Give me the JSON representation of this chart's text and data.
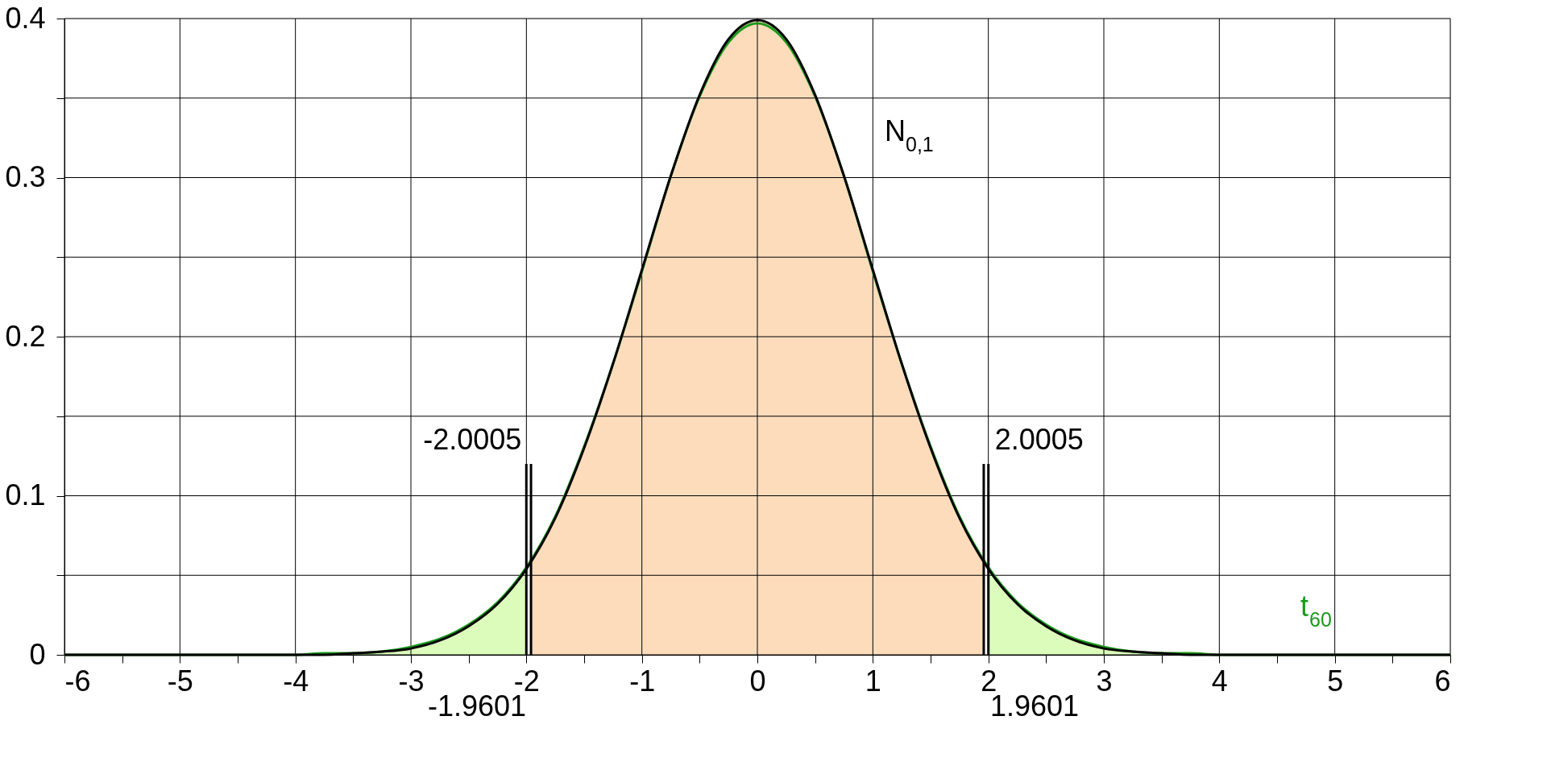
{
  "chart_data": {
    "type": "line",
    "xlim": [
      -6,
      6
    ],
    "ylim": [
      0,
      0.4
    ],
    "xticks": [
      -6,
      {
        "value": -5.5,
        "label": null
      },
      -5,
      {
        "value": -4.5,
        "label": null
      },
      -4,
      {
        "value": -3.5,
        "label": null
      },
      -3,
      {
        "value": -2.5,
        "label": null
      },
      -2,
      {
        "value": -1.5,
        "label": null
      },
      -1,
      {
        "value": -0.5,
        "label": null
      },
      0,
      {
        "value": 0.5,
        "label": null
      },
      1,
      {
        "value": 1.5,
        "label": null
      },
      2,
      {
        "value": 2.5,
        "label": null
      },
      3,
      {
        "value": 3.5,
        "label": null
      },
      4,
      {
        "value": 4.5,
        "label": null
      },
      5,
      {
        "value": 5.5,
        "label": null
      },
      6
    ],
    "yticks": [
      0,
      {
        "value": 0.05,
        "label": null
      },
      0.1,
      {
        "value": 0.15,
        "label": null
      },
      0.2,
      {
        "value": 0.25,
        "label": null
      },
      0.3,
      {
        "value": 0.35,
        "label": null
      },
      0.4
    ],
    "grid": true,
    "series": [
      {
        "type": "area",
        "color": "#fddcbc",
        "x": [
          -1.9601,
          -1.75,
          -1.5,
          -1.25,
          -1,
          -0.75,
          -0.5,
          -0.25,
          0,
          0.25,
          0.5,
          0.75,
          1,
          1.25,
          1.5,
          1.75,
          1.9601
        ],
        "values": [
          0.058,
          0.086,
          0.13,
          0.183,
          0.242,
          0.301,
          0.352,
          0.387,
          0.399,
          0.387,
          0.352,
          0.301,
          0.242,
          0.183,
          0.13,
          0.086,
          0.058
        ]
      },
      {
        "type": "area",
        "color": "#dcfcbc",
        "x": [
          -6,
          -5,
          -4,
          -3.75,
          -3.5,
          -3.25,
          -3,
          -2.75,
          -2.5,
          -2.25,
          -2.0005
        ],
        "values": [
          0,
          0,
          0,
          0.001,
          0.001,
          0.002,
          0.005,
          0.01,
          0.019,
          0.033,
          0.055
        ]
      },
      {
        "type": "area",
        "color": "#dcfcbc",
        "x": [
          2.0005,
          2.25,
          2.5,
          2.75,
          3,
          3.25,
          3.5,
          3.75,
          4,
          5,
          6
        ],
        "values": [
          0.055,
          0.033,
          0.019,
          0.01,
          0.005,
          0.002,
          0.001,
          0.001,
          0,
          0,
          0
        ]
      },
      {
        "name": "t$_{60}$",
        "color": "#1a9a1a",
        "x": [
          -6,
          -5,
          -4,
          -3.75,
          -3.5,
          -3.25,
          -3,
          -2.75,
          -2.5,
          -2.25,
          -2,
          -1.75,
          -1.5,
          -1.25,
          -1,
          -0.75,
          -0.5,
          -0.25,
          0,
          0.25,
          0.5,
          0.75,
          1,
          1.25,
          1.5,
          1.75,
          2,
          2.25,
          2.5,
          2.75,
          3,
          3.25,
          3.5,
          3.75,
          4,
          5,
          6
        ],
        "values": [
          0,
          0,
          0,
          0.001,
          0.001,
          0.002,
          0.005,
          0.01,
          0.019,
          0.033,
          0.055,
          0.087,
          0.131,
          0.183,
          0.241,
          0.301,
          0.351,
          0.385,
          0.397,
          0.385,
          0.351,
          0.301,
          0.241,
          0.183,
          0.131,
          0.087,
          0.055,
          0.033,
          0.019,
          0.01,
          0.005,
          0.002,
          0.001,
          0.001,
          0,
          0,
          0
        ]
      },
      {
        "name": "N$_{0,1}$",
        "color": "#000000",
        "x": [
          -6,
          -5,
          -4,
          -3.75,
          -3.5,
          -3.25,
          -3,
          -2.75,
          -2.5,
          -2.25,
          -2,
          -1.75,
          -1.5,
          -1.25,
          -1,
          -0.75,
          -0.5,
          -0.25,
          0,
          0.25,
          0.5,
          0.75,
          1,
          1.25,
          1.5,
          1.75,
          2,
          2.25,
          2.5,
          2.75,
          3,
          3.25,
          3.5,
          3.75,
          4,
          5,
          6
        ],
        "values": [
          0,
          0,
          0,
          0,
          0.001,
          0.002,
          0.004,
          0.009,
          0.018,
          0.032,
          0.054,
          0.086,
          0.13,
          0.183,
          0.242,
          0.301,
          0.352,
          0.387,
          0.399,
          0.387,
          0.352,
          0.301,
          0.242,
          0.183,
          0.13,
          0.086,
          0.054,
          0.032,
          0.018,
          0.009,
          0.004,
          0.002,
          0.001,
          0,
          0,
          0,
          0
        ]
      },
      {
        "color": "#000000",
        "x": [
          -2.0005,
          -2.0005
        ],
        "values": [
          0,
          0.12
        ]
      },
      {
        "color": "#000000",
        "x": [
          -1.9601,
          -1.9601
        ],
        "values": [
          0,
          0.12
        ]
      },
      {
        "color": "#000000",
        "x": [
          1.9601,
          1.9601
        ],
        "values": [
          0,
          0.12
        ]
      },
      {
        "color": "#000000",
        "x": [
          2.0005,
          2.0005
        ],
        "values": [
          0,
          0.12
        ]
      }
    ],
    "annotations": [
      {
        "text": "-2.0005",
        "x": -2.0005,
        "y": 0.12
      },
      {
        "text": "2.0005",
        "x": 2.0005,
        "y": 0.12
      },
      {
        "text": "-1.9601",
        "x": -1.9601,
        "y": 0
      },
      {
        "text": "1.9601",
        "x": 1.9601,
        "y": 0
      }
    ]
  }
}
